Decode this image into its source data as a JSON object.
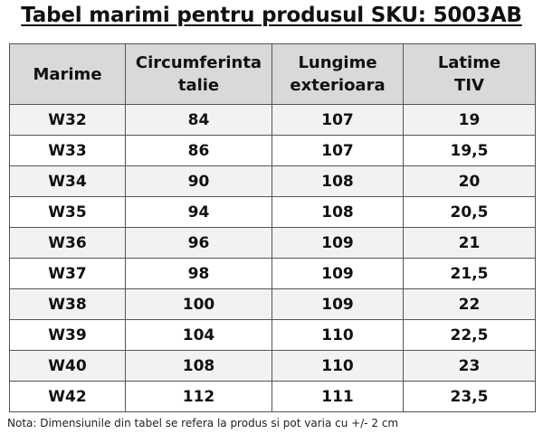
{
  "title": "Tabel marimi pentru produsul SKU: 5003AB",
  "table": {
    "headers": [
      [
        "Marime"
      ],
      [
        "Circumferinta",
        "talie"
      ],
      [
        "Lungime",
        "exterioara"
      ],
      [
        "Latime",
        "TIV"
      ]
    ],
    "rows": [
      [
        "W32",
        "84",
        "107",
        "19"
      ],
      [
        "W33",
        "86",
        "107",
        "19,5"
      ],
      [
        "W34",
        "90",
        "108",
        "20"
      ],
      [
        "W35",
        "94",
        "108",
        "20,5"
      ],
      [
        "W36",
        "96",
        "109",
        "21"
      ],
      [
        "W37",
        "98",
        "109",
        "21,5"
      ],
      [
        "W38",
        "100",
        "109",
        "22"
      ],
      [
        "W39",
        "104",
        "110",
        "22,5"
      ],
      [
        "W40",
        "108",
        "110",
        "23"
      ],
      [
        "W42",
        "112",
        "111",
        "23,5"
      ]
    ]
  },
  "note": "Nota: Dimensiunile din tabel se refera la produs si pot varia cu +/- 2 cm",
  "colors": {
    "header_background": "#d9d9d9",
    "odd_row_background": "#f2f2f2",
    "even_row_background": "#ffffff",
    "border": "#555555"
  }
}
